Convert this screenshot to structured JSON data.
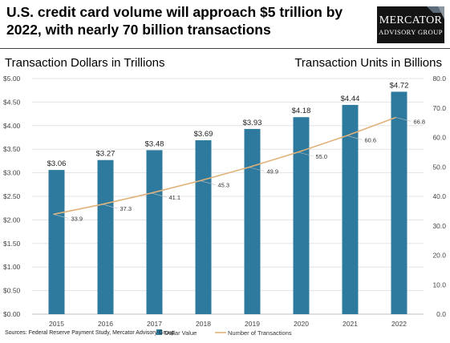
{
  "title": "U.S. credit card volume will approach $5 trillion by 2022, with nearly 70 billion transactions",
  "logo": {
    "line1": "Mercator",
    "line2": "Advisory Group"
  },
  "source": "Sources: Federal Reserve Payment Study, Mercator Advisory Group",
  "colors": {
    "bar": "#2e7a9e",
    "line": "#e0b27a",
    "grid": "#e3e3e3"
  },
  "chart_data": {
    "type": "bar",
    "categories": [
      "2015",
      "2016",
      "2017",
      "2018",
      "2019",
      "2020",
      "2021",
      "2022"
    ],
    "ylabel": "Transaction Dollars in Trillions",
    "y2label": "Transaction Units in Billions",
    "ylim": [
      0,
      5
    ],
    "y2lim": [
      0,
      80
    ],
    "yticks": [
      "$0.00",
      "$0.50",
      "$1.00",
      "$1.50",
      "$2.00",
      "$2.50",
      "$3.00",
      "$3.50",
      "$4.00",
      "$4.50",
      "$5.00"
    ],
    "y2ticks": [
      "0.0",
      "10.0",
      "20.0",
      "30.0",
      "40.0",
      "50.0",
      "60.0",
      "70.0",
      "80.0"
    ],
    "grid": true,
    "legend_position": "bottom",
    "series": [
      {
        "name": "Dollar Value",
        "type": "bar",
        "axis": "left",
        "values": [
          3.06,
          3.27,
          3.48,
          3.69,
          3.93,
          4.18,
          4.44,
          4.72
        ],
        "labels": [
          "$3.06",
          "$3.27",
          "$3.48",
          "$3.69",
          "$3.93",
          "$4.18",
          "$4.44",
          "$4.72"
        ]
      },
      {
        "name": "Number of Transactions",
        "type": "line",
        "axis": "right",
        "values": [
          33.9,
          37.3,
          41.1,
          45.3,
          49.9,
          55.0,
          60.6,
          66.8
        ],
        "labels": [
          "33.9",
          "37.3",
          "41.1",
          "45.3",
          "49.9",
          "55.0",
          "60.6",
          "66.8"
        ]
      }
    ]
  }
}
